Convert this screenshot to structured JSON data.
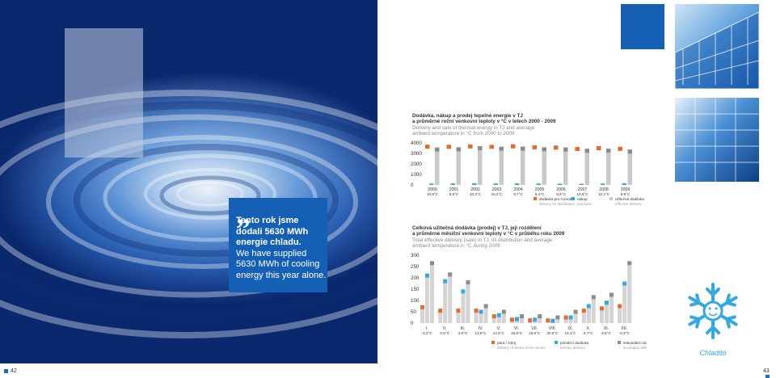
{
  "quote": {
    "lines_cz": [
      "Tento rok jsme",
      "dodali 5630 MWh",
      "energie chladu."
    ],
    "lines_en": [
      "We have supplied",
      "5630 MWh of cooling",
      "energy this year alone."
    ]
  },
  "pages": {
    "left": "42",
    "right": "43"
  },
  "logo_text": "Chladito",
  "colors": {
    "orange": "#e96a2b",
    "light_blue": "#33a9e0",
    "grey": "#c9c9c9",
    "dark_grey": "#8c8c8c",
    "page_blue": "#1560b5"
  },
  "chart1_title": {
    "cz1": "Dodávka, nákup a prodej tepelné energie v TJ",
    "cz2": "a průměrné roční venkovní teploty v °C v letech 2000 - 2009",
    "en1": "Delivery and sale of thermal energy in TJ and average",
    "en2": "ambient temperature in °C from 2000 to 2009"
  },
  "chart2_title": {
    "cz1": "Celková užitečná dodávka (prodej) v TJ, její rozdělení",
    "cz2": "a průměrné měsíční venkovní teploty v °C v průběhu roku 2009",
    "en1": "Total effective delivery (sale) in TJ, its distribution and average",
    "en2": "ambient temperature in °C during 2009"
  },
  "chart_data": [
    {
      "type": "bar",
      "categories": [
        "2000",
        "2001",
        "2002",
        "2003",
        "2004",
        "2005",
        "2006",
        "2007",
        "2008",
        "2009"
      ],
      "category_labels": [
        [
          "2000",
          "10,9°C"
        ],
        [
          "2001",
          "9,8°C"
        ],
        [
          "2002",
          "10,3°C"
        ],
        [
          "2003",
          "10,2°C"
        ],
        [
          "2004",
          "9,7°C"
        ],
        [
          "2005",
          "9,4°C"
        ],
        [
          "2006",
          "9,9°C"
        ],
        [
          "2007",
          "10,6°C"
        ],
        [
          "2008",
          "10,1°C"
        ],
        [
          "2009",
          "9,9°C"
        ]
      ],
      "highlight_category": "2009",
      "series": [
        {
          "name": "dodávka pro rozvod",
          "name_en": "delivery for distribution",
          "color": "#e96a2b",
          "values": [
            3650,
            3640,
            3670,
            3630,
            3680,
            3580,
            3560,
            3420,
            3500,
            3440
          ]
        },
        {
          "name": "nákup",
          "name_en": "purchase",
          "color": "#33a9e0",
          "values": [
            130,
            150,
            170,
            140,
            150,
            140,
            120,
            110,
            140,
            160
          ]
        },
        {
          "name": "užitečná dodávka",
          "name_en": "effective delivery",
          "color": "#c9c9c9",
          "values": [
            3380,
            3400,
            3500,
            3450,
            3460,
            3400,
            3380,
            3260,
            3270,
            3180
          ]
        }
      ],
      "yticks": [
        "0",
        "1000",
        "2000",
        "3000",
        "4000"
      ],
      "ylim": [
        0,
        4000
      ]
    },
    {
      "type": "bar",
      "categories": [
        "I.",
        "II.",
        "III.",
        "IV.",
        "V.",
        "VI.",
        "VII.",
        "VIII.",
        "IX.",
        "X.",
        "XI.",
        "XII."
      ],
      "category_labels": [
        [
          "I.",
          "-3,2°C"
        ],
        [
          "II.",
          "0,5°C"
        ],
        [
          "III.",
          "4,8°C"
        ],
        [
          "IV.",
          "13,8°C"
        ],
        [
          "V.",
          "14,5°C"
        ],
        [
          "VI.",
          "16,8°C"
        ],
        [
          "VII.",
          "19,6°C"
        ],
        [
          "VIII.",
          "20,5°C"
        ],
        [
          "IX.",
          "16,1°C"
        ],
        [
          "X.",
          "8,7°C"
        ],
        [
          "XI.",
          "6,5°C"
        ],
        [
          "XII.",
          "-0,3°C"
        ]
      ],
      "series": [
        {
          "name": "pára / zdroj",
          "name_en": "delivery of steam at the source",
          "color": "#e96a2b",
          "values": [
            70,
            55,
            55,
            55,
            30,
            15,
            12,
            12,
            25,
            55,
            65,
            75
          ]
        },
        {
          "name": "primární dodávka",
          "name_en": "primary delivery",
          "color": "#33a9e0",
          "values": [
            210,
            185,
            140,
            50,
            35,
            18,
            15,
            10,
            25,
            75,
            90,
            175
          ]
        },
        {
          "name": "sekundární dodávka",
          "name_en": "secondary delivery",
          "color": "#8c8c8c",
          "values": [
            265,
            215,
            180,
            75,
            50,
            30,
            30,
            25,
            50,
            115,
            125,
            265
          ]
        }
      ],
      "yticks": [
        "0",
        "50",
        "100",
        "150",
        "200",
        "250",
        "300"
      ],
      "ylim": [
        0,
        300
      ]
    }
  ]
}
